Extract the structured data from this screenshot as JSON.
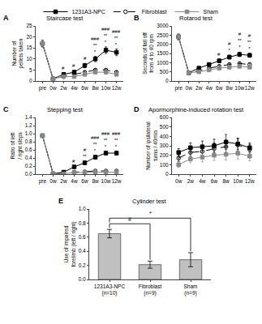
{
  "chart_data": [
    {
      "type": "line",
      "panel": "A",
      "title": "Staircase test",
      "y_label": "Number of pellets taken",
      "categories": [
        "pre",
        "0w",
        "2w",
        "4w",
        "6w",
        "8w",
        "10w",
        "12w"
      ],
      "series": [
        {
          "name": "1231A3-NPC",
          "color": "#000000",
          "marker": "square",
          "line_style": "solid",
          "values": [
            17,
            1,
            3,
            4,
            7,
            10,
            14,
            13
          ],
          "errors": [
            1.5,
            0.3,
            0.8,
            0.8,
            1.0,
            1.2,
            1.5,
            1.5
          ]
        },
        {
          "name": "Fibroblast",
          "color": "#000000",
          "marker": "open circle",
          "line_style": "dashed",
          "values": [
            17,
            1,
            2,
            3,
            4,
            5,
            5,
            4
          ],
          "errors": [
            1.5,
            0.3,
            0.5,
            0.5,
            0.5,
            0.5,
            0.6,
            0.5
          ]
        },
        {
          "name": "Sham",
          "color": "#888888",
          "marker": "square",
          "line_style": "solid",
          "values": [
            17,
            1,
            2,
            2,
            3,
            4,
            4,
            3
          ],
          "errors": [
            1.5,
            0.3,
            0.4,
            0.4,
            0.4,
            0.5,
            0.5,
            0.4
          ]
        }
      ],
      "ylim": [
        0,
        25
      ],
      "yticks": [
        0,
        5,
        10,
        15,
        20,
        25
      ],
      "grid": false,
      "legend": "top",
      "annotations": [
        {
          "x": "2w",
          "text": "#"
        },
        {
          "x": "4w",
          "text": "#"
        },
        {
          "x": "6w",
          "text": "#"
        },
        {
          "x": "8w",
          "text": "###\n**\n*"
        },
        {
          "x": "10w",
          "text": "###\n**\n*"
        },
        {
          "x": "12w",
          "text": "###\n**\n*"
        }
      ]
    },
    {
      "type": "line",
      "panel": "B",
      "title": "Rotarod test",
      "y_label": "Seconds of fall off from 4 to 40 rpm",
      "categories": [
        "pre",
        "0w",
        "2w",
        "4w",
        "6w",
        "8w",
        "10w",
        "12w"
      ],
      "series": [
        {
          "name": "1231A3-NPC",
          "color": "#000000",
          "marker": "square",
          "line_style": "solid",
          "values": [
            2400,
            450,
            700,
            900,
            1100,
            1300,
            1450,
            1400
          ],
          "errors": [
            150,
            60,
            80,
            90,
            100,
            110,
            120,
            110
          ]
        },
        {
          "name": "Fibroblast",
          "color": "#000000",
          "marker": "open circle",
          "line_style": "dashed",
          "values": [
            2400,
            450,
            550,
            700,
            800,
            900,
            950,
            900
          ],
          "errors": [
            150,
            60,
            60,
            70,
            80,
            80,
            80,
            80
          ]
        },
        {
          "name": "Sham",
          "color": "#888888",
          "marker": "square",
          "line_style": "solid",
          "values": [
            2400,
            450,
            500,
            600,
            700,
            750,
            800,
            750
          ],
          "errors": [
            150,
            60,
            55,
            60,
            65,
            65,
            70,
            65
          ]
        }
      ],
      "ylim": [
        0,
        3000
      ],
      "yticks": [
        0,
        500,
        1000,
        1500,
        2000,
        2500,
        3000
      ],
      "grid": false,
      "legend": "top",
      "annotations": [
        {
          "x": "6w",
          "text": "#"
        },
        {
          "x": "8w",
          "text": "#\n*"
        },
        {
          "x": "10w",
          "text": "#\n**\n*"
        },
        {
          "x": "12w",
          "text": "#\n**\n*"
        }
      ]
    },
    {
      "type": "line",
      "panel": "C",
      "title": "Stepping test",
      "y_label": "Ratio of left / right steps",
      "categories": [
        "pre",
        "0w",
        "2w",
        "4w",
        "6w",
        "8w",
        "10w",
        "12w"
      ],
      "series": [
        {
          "name": "1231A3-NPC",
          "color": "#000000",
          "marker": "square",
          "line_style": "solid",
          "values": [
            0.95,
            0.01,
            0.05,
            0.18,
            0.28,
            0.42,
            0.52,
            0.52
          ],
          "errors": [
            0.04,
            0.005,
            0.01,
            0.03,
            0.04,
            0.05,
            0.05,
            0.05
          ]
        },
        {
          "name": "Fibroblast",
          "color": "#000000",
          "marker": "open circle",
          "line_style": "dashed",
          "values": [
            0.95,
            0.01,
            0.02,
            0.05,
            0.06,
            0.08,
            0.08,
            0.08
          ],
          "errors": [
            0.04,
            0.005,
            0.005,
            0.01,
            0.01,
            0.01,
            0.01,
            0.01
          ]
        },
        {
          "name": "Sham",
          "color": "#888888",
          "marker": "square",
          "line_style": "solid",
          "values": [
            0.95,
            0.01,
            0.01,
            0.04,
            0.04,
            0.05,
            0.05,
            0.05
          ],
          "errors": [
            0.04,
            0.005,
            0.005,
            0.01,
            0.01,
            0.01,
            0.01,
            0.01
          ]
        }
      ],
      "ylim": [
        0,
        1.4
      ],
      "yticks": [
        {
          "value": 0,
          "label": "0.0"
        },
        0.2,
        0.4,
        0.6,
        0.8,
        {
          "value": 1,
          "label": "1.0"
        },
        1.2,
        1.4
      ],
      "grid": false,
      "legend": "top",
      "annotations": [
        {
          "x": "4w",
          "text": "#"
        },
        {
          "x": "6w",
          "text": "#\n**"
        },
        {
          "x": "8w",
          "text": "###\n**\n*"
        },
        {
          "x": "10w",
          "text": "###\n**\n*"
        },
        {
          "x": "12w",
          "text": "###\n**\n*"
        }
      ]
    },
    {
      "type": "line",
      "panel": "D",
      "title": "Apormorphine-induced rotation test",
      "y_label": "Number of ipsilateral turns / 40min",
      "categories": [
        "0w",
        "2w",
        "4w",
        "6w",
        "8w",
        "10w",
        "12w"
      ],
      "series": [
        {
          "name": "1231A3-NPC",
          "color": "#000000",
          "marker": "square",
          "line_style": "solid",
          "values": [
            230,
            280,
            290,
            300,
            340,
            320,
            280
          ],
          "errors": [
            40,
            50,
            60,
            70,
            80,
            60,
            50
          ]
        },
        {
          "name": "Fibroblast",
          "color": "#000000",
          "marker": "open circle",
          "line_style": "dashed",
          "values": [
            170,
            230,
            240,
            270,
            290,
            310,
            260
          ],
          "errors": [
            35,
            45,
            55,
            60,
            70,
            65,
            55
          ]
        },
        {
          "name": "Sham",
          "color": "#888888",
          "marker": "square",
          "line_style": "solid",
          "values": [
            100,
            160,
            180,
            200,
            210,
            220,
            190
          ],
          "errors": [
            30,
            40,
            50,
            55,
            60,
            60,
            50
          ]
        }
      ],
      "ylim": [
        0,
        600
      ],
      "yticks": [
        0,
        100,
        200,
        300,
        400,
        500,
        600
      ],
      "grid": false,
      "legend": "top"
    },
    {
      "type": "bar",
      "panel": "E",
      "title": "Cylinder test",
      "y_label": "Use of impaired forelimb (left / right)",
      "categories": [
        "1231A3-NPC\n(n=10)",
        "Fibroblast\n(n=9)",
        "Sham\n(n=9)"
      ],
      "values": [
        0.65,
        0.21,
        0.28
      ],
      "errors": [
        0.06,
        0.05,
        0.1
      ],
      "color": "#c0c0c0",
      "ylim": [
        0,
        1
      ],
      "yticks": [
        {
          "value": 0,
          "label": "0.0"
        },
        0.2,
        0.4,
        0.6,
        0.8,
        {
          "value": 1,
          "label": "1.0"
        }
      ],
      "grid": false,
      "annotations": [
        {
          "from": "1231A3-NPC\n(n=10)",
          "to": "Fibroblast\n(n=9)",
          "text": "#"
        },
        {
          "from": "1231A3-NPC\n(n=10)",
          "to": "Sham\n(n=9)",
          "text": "*"
        }
      ]
    }
  ]
}
